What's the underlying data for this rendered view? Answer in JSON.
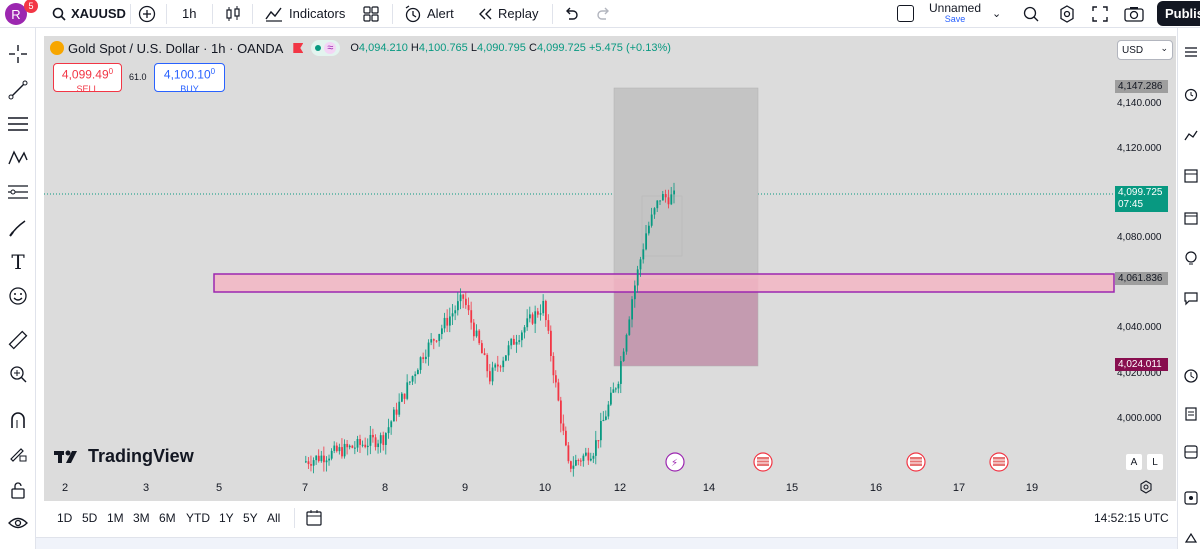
{
  "topbar": {
    "avatar_letter": "R",
    "notification_count": "5",
    "symbol": "XAUUSD",
    "interval": "1h",
    "indicators_label": "Indicators",
    "alert_label": "Alert",
    "replay_label": "Replay",
    "layout_name": "Unnamed",
    "layout_status": "Save",
    "publish_label": "Publis"
  },
  "legend": {
    "title": "Gold Spot / U.S. Dollar · 1h · OANDA",
    "open_label": "O",
    "open": "4,094.210",
    "high_label": "H",
    "high": "4,100.765",
    "low_label": "L",
    "low": "4,090.795",
    "close_label": "C",
    "close": "4,099.725",
    "change": "+5.475 (+0.13%)"
  },
  "trade": {
    "sell_price": "4,099.49",
    "sell_sup": "0",
    "sell_label": "SELL",
    "spread": "61.0",
    "buy_price": "4,100.10",
    "buy_sup": "0",
    "buy_label": "BUY"
  },
  "currency": "USD",
  "price_axis": {
    "ticks": [
      "4,140.000",
      "4,120.000",
      "4,080.000",
      "4,040.000",
      "4,020.000",
      "4,000.000"
    ],
    "tag_top": "4,147.286",
    "tag_current": "4,099.725",
    "tag_countdown": "07:45",
    "tag_zone": "4,061.836",
    "tag_bottom": "4,024.011"
  },
  "time_axis": {
    "ticks": [
      "2",
      "3",
      "5",
      "7",
      "8",
      "9",
      "10",
      "12",
      "14",
      "15",
      "16",
      "17",
      "19"
    ]
  },
  "brand": "TradingView",
  "axis_buttons": {
    "auto": "A",
    "log": "L"
  },
  "ranges": [
    "1D",
    "5D",
    "1M",
    "3M",
    "6M",
    "YTD",
    "1Y",
    "5Y",
    "All"
  ],
  "clock": "14:52:15 UTC",
  "colors": {
    "up": "#089981",
    "down": "#f23645",
    "zone_border": "#9c27b0",
    "zone_fill": "#f3b6c4",
    "current_price": "#089981",
    "bottom_tag": "#880e4f",
    "top_tag": "#9e9e9e"
  },
  "chart_data": {
    "type": "candlestick",
    "symbol": "XAUUSD",
    "xlabel": "",
    "ylabel": "",
    "ylim": [
      3985,
      4150
    ],
    "x_ticks": [
      "2",
      "3",
      "5",
      "7",
      "8",
      "9",
      "10",
      "12",
      "14",
      "15",
      "16",
      "17",
      "19"
    ],
    "visible_close_path": [
      {
        "x": "7",
        "y": 3990
      },
      {
        "x": "8",
        "y": 4000
      },
      {
        "x": "8",
        "y": 4035
      },
      {
        "x": "9",
        "y": 4058
      },
      {
        "x": "9",
        "y": 4025
      },
      {
        "x": "9",
        "y": 4042
      },
      {
        "x": "10",
        "y": 4055
      },
      {
        "x": "10",
        "y": 3988
      },
      {
        "x": "10",
        "y": 3995
      },
      {
        "x": "12",
        "y": 4025
      },
      {
        "x": "12",
        "y": 4058
      },
      {
        "x": "12",
        "y": 4085
      },
      {
        "x": "12",
        "y": 4099.725
      }
    ],
    "last_close": 4099.725
  }
}
